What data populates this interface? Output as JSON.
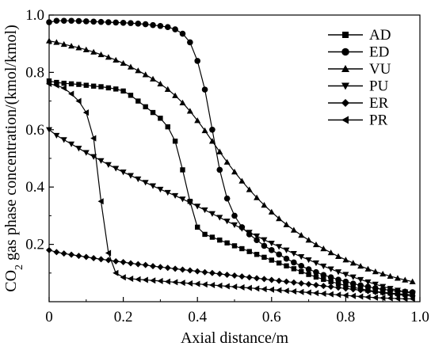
{
  "chart_data": {
    "type": "line",
    "xlabel": "Axial distance/m",
    "ylabel": "CO2 gas phase concentration/(kmol/kmol)",
    "ylabel_parts": {
      "prefix": "CO",
      "subscript": "2",
      "suffix": " gas phase concentration/(kmol/kmol)"
    },
    "xlim": [
      0,
      1.0
    ],
    "ylim": [
      0,
      1.0
    ],
    "x_ticks": [
      0,
      0.2,
      0.4,
      0.6,
      0.8,
      1.0
    ],
    "x_tick_labels": [
      "0",
      "0.2",
      "0.4",
      "0.6",
      "0.8",
      "1.0"
    ],
    "y_ticks": [
      0.2,
      0.4,
      0.6,
      0.8,
      1.0
    ],
    "y_tick_labels": [
      "0.2",
      "0.4",
      "0.6",
      "0.8",
      "1.0"
    ],
    "grid": false,
    "legend": {
      "position": "top-right"
    },
    "series": [
      {
        "name": "AD",
        "marker": "square",
        "x": [
          0.0,
          0.02,
          0.04,
          0.06,
          0.08,
          0.1,
          0.12,
          0.14,
          0.16,
          0.18,
          0.2,
          0.22,
          0.24,
          0.26,
          0.28,
          0.3,
          0.32,
          0.34,
          0.36,
          0.38,
          0.4,
          0.42,
          0.44,
          0.46,
          0.48,
          0.5,
          0.52,
          0.54,
          0.56,
          0.58,
          0.6,
          0.62,
          0.64,
          0.66,
          0.68,
          0.7,
          0.72,
          0.74,
          0.76,
          0.78,
          0.8,
          0.82,
          0.84,
          0.86,
          0.88,
          0.9,
          0.92,
          0.94,
          0.96,
          0.98
        ],
        "y": [
          0.77,
          0.765,
          0.762,
          0.76,
          0.758,
          0.755,
          0.752,
          0.75,
          0.746,
          0.742,
          0.735,
          0.72,
          0.7,
          0.68,
          0.66,
          0.64,
          0.61,
          0.56,
          0.46,
          0.35,
          0.26,
          0.235,
          0.225,
          0.215,
          0.205,
          0.195,
          0.185,
          0.175,
          0.165,
          0.155,
          0.145,
          0.135,
          0.125,
          0.115,
          0.105,
          0.095,
          0.086,
          0.078,
          0.07,
          0.063,
          0.056,
          0.05,
          0.045,
          0.04,
          0.036,
          0.033,
          0.03,
          0.028,
          0.026,
          0.025
        ]
      },
      {
        "name": "ED",
        "marker": "circle",
        "x": [
          0.0,
          0.02,
          0.04,
          0.06,
          0.08,
          0.1,
          0.12,
          0.14,
          0.16,
          0.18,
          0.2,
          0.22,
          0.24,
          0.26,
          0.28,
          0.3,
          0.32,
          0.34,
          0.36,
          0.38,
          0.4,
          0.42,
          0.44,
          0.46,
          0.48,
          0.5,
          0.52,
          0.54,
          0.56,
          0.58,
          0.6,
          0.62,
          0.64,
          0.66,
          0.68,
          0.7,
          0.72,
          0.74,
          0.76,
          0.78,
          0.8,
          0.82,
          0.84,
          0.86,
          0.88,
          0.9,
          0.92,
          0.94,
          0.96,
          0.98
        ],
        "y": [
          0.975,
          0.98,
          0.98,
          0.98,
          0.979,
          0.978,
          0.977,
          0.976,
          0.975,
          0.974,
          0.973,
          0.972,
          0.97,
          0.968,
          0.965,
          0.962,
          0.958,
          0.95,
          0.935,
          0.905,
          0.84,
          0.74,
          0.6,
          0.46,
          0.36,
          0.3,
          0.26,
          0.235,
          0.215,
          0.195,
          0.18,
          0.165,
          0.15,
          0.137,
          0.125,
          0.113,
          0.103,
          0.093,
          0.085,
          0.077,
          0.07,
          0.063,
          0.057,
          0.052,
          0.047,
          0.043,
          0.04,
          0.037,
          0.035,
          0.033
        ]
      },
      {
        "name": "VU",
        "marker": "triangle-up",
        "x": [
          0.0,
          0.02,
          0.04,
          0.06,
          0.08,
          0.1,
          0.12,
          0.14,
          0.16,
          0.18,
          0.2,
          0.22,
          0.24,
          0.26,
          0.28,
          0.3,
          0.32,
          0.34,
          0.36,
          0.38,
          0.4,
          0.42,
          0.44,
          0.46,
          0.48,
          0.5,
          0.52,
          0.54,
          0.56,
          0.58,
          0.6,
          0.62,
          0.64,
          0.66,
          0.68,
          0.7,
          0.72,
          0.74,
          0.76,
          0.78,
          0.8,
          0.82,
          0.84,
          0.86,
          0.88,
          0.9,
          0.92,
          0.94,
          0.96,
          0.98
        ],
        "y": [
          0.91,
          0.905,
          0.898,
          0.892,
          0.886,
          0.879,
          0.871,
          0.862,
          0.853,
          0.843,
          0.832,
          0.819,
          0.806,
          0.792,
          0.777,
          0.76,
          0.741,
          0.719,
          0.694,
          0.665,
          0.632,
          0.597,
          0.56,
          0.523,
          0.487,
          0.453,
          0.421,
          0.391,
          0.363,
          0.337,
          0.313,
          0.29,
          0.269,
          0.25,
          0.232,
          0.215,
          0.199,
          0.185,
          0.171,
          0.158,
          0.146,
          0.135,
          0.124,
          0.114,
          0.105,
          0.097,
          0.089,
          0.082,
          0.076,
          0.07
        ]
      },
      {
        "name": "PU",
        "marker": "triangle-down",
        "x": [
          0.0,
          0.02,
          0.04,
          0.06,
          0.08,
          0.1,
          0.12,
          0.14,
          0.16,
          0.18,
          0.2,
          0.22,
          0.24,
          0.26,
          0.28,
          0.3,
          0.32,
          0.34,
          0.36,
          0.38,
          0.4,
          0.42,
          0.44,
          0.46,
          0.48,
          0.5,
          0.52,
          0.54,
          0.56,
          0.58,
          0.6,
          0.62,
          0.64,
          0.66,
          0.68,
          0.7,
          0.72,
          0.74,
          0.76,
          0.78,
          0.8,
          0.82,
          0.84,
          0.86,
          0.88,
          0.9,
          0.92,
          0.94,
          0.96,
          0.98
        ],
        "y": [
          0.6,
          0.58,
          0.565,
          0.55,
          0.535,
          0.52,
          0.506,
          0.492,
          0.478,
          0.465,
          0.452,
          0.44,
          0.428,
          0.416,
          0.404,
          0.392,
          0.381,
          0.37,
          0.358,
          0.346,
          0.333,
          0.32,
          0.307,
          0.294,
          0.281,
          0.268,
          0.255,
          0.242,
          0.229,
          0.216,
          0.204,
          0.192,
          0.18,
          0.168,
          0.157,
          0.146,
          0.135,
          0.124,
          0.114,
          0.104,
          0.095,
          0.086,
          0.077,
          0.069,
          0.061,
          0.053,
          0.046,
          0.04,
          0.034,
          0.03
        ]
      },
      {
        "name": "ER",
        "marker": "diamond",
        "x": [
          0.0,
          0.02,
          0.04,
          0.06,
          0.08,
          0.1,
          0.12,
          0.14,
          0.16,
          0.18,
          0.2,
          0.22,
          0.24,
          0.26,
          0.28,
          0.3,
          0.32,
          0.34,
          0.36,
          0.38,
          0.4,
          0.42,
          0.44,
          0.46,
          0.48,
          0.5,
          0.52,
          0.54,
          0.56,
          0.58,
          0.6,
          0.62,
          0.64,
          0.66,
          0.68,
          0.7,
          0.72,
          0.74,
          0.76,
          0.78,
          0.8,
          0.82,
          0.84,
          0.86,
          0.88,
          0.9,
          0.92,
          0.94,
          0.96,
          0.98
        ],
        "y": [
          0.18,
          0.173,
          0.168,
          0.164,
          0.16,
          0.156,
          0.152,
          0.148,
          0.145,
          0.141,
          0.138,
          0.134,
          0.131,
          0.128,
          0.124,
          0.121,
          0.118,
          0.115,
          0.112,
          0.109,
          0.106,
          0.103,
          0.1,
          0.097,
          0.094,
          0.091,
          0.088,
          0.085,
          0.082,
          0.079,
          0.076,
          0.073,
          0.07,
          0.067,
          0.064,
          0.061,
          0.058,
          0.055,
          0.052,
          0.049,
          0.046,
          0.043,
          0.04,
          0.037,
          0.034,
          0.031,
          0.028,
          0.025,
          0.022,
          0.02
        ]
      },
      {
        "name": "PR",
        "marker": "triangle-left",
        "x": [
          0.0,
          0.02,
          0.04,
          0.06,
          0.08,
          0.1,
          0.12,
          0.14,
          0.16,
          0.18,
          0.2,
          0.22,
          0.24,
          0.26,
          0.28,
          0.3,
          0.32,
          0.34,
          0.36,
          0.38,
          0.4,
          0.42,
          0.44,
          0.46,
          0.48,
          0.5,
          0.52,
          0.54,
          0.56,
          0.58,
          0.6,
          0.62,
          0.64,
          0.66,
          0.68,
          0.7,
          0.72,
          0.74,
          0.76,
          0.78,
          0.8,
          0.82,
          0.84,
          0.86,
          0.88,
          0.9,
          0.92,
          0.94,
          0.96,
          0.98
        ],
        "y": [
          0.76,
          0.755,
          0.745,
          0.725,
          0.7,
          0.66,
          0.57,
          0.35,
          0.17,
          0.1,
          0.085,
          0.08,
          0.078,
          0.076,
          0.074,
          0.072,
          0.07,
          0.068,
          0.066,
          0.064,
          0.062,
          0.06,
          0.058,
          0.056,
          0.054,
          0.052,
          0.05,
          0.048,
          0.046,
          0.044,
          0.042,
          0.04,
          0.038,
          0.036,
          0.034,
          0.032,
          0.03,
          0.028,
          0.026,
          0.024,
          0.022,
          0.02,
          0.018,
          0.016,
          0.014,
          0.013,
          0.012,
          0.011,
          0.01,
          0.01
        ]
      }
    ]
  }
}
